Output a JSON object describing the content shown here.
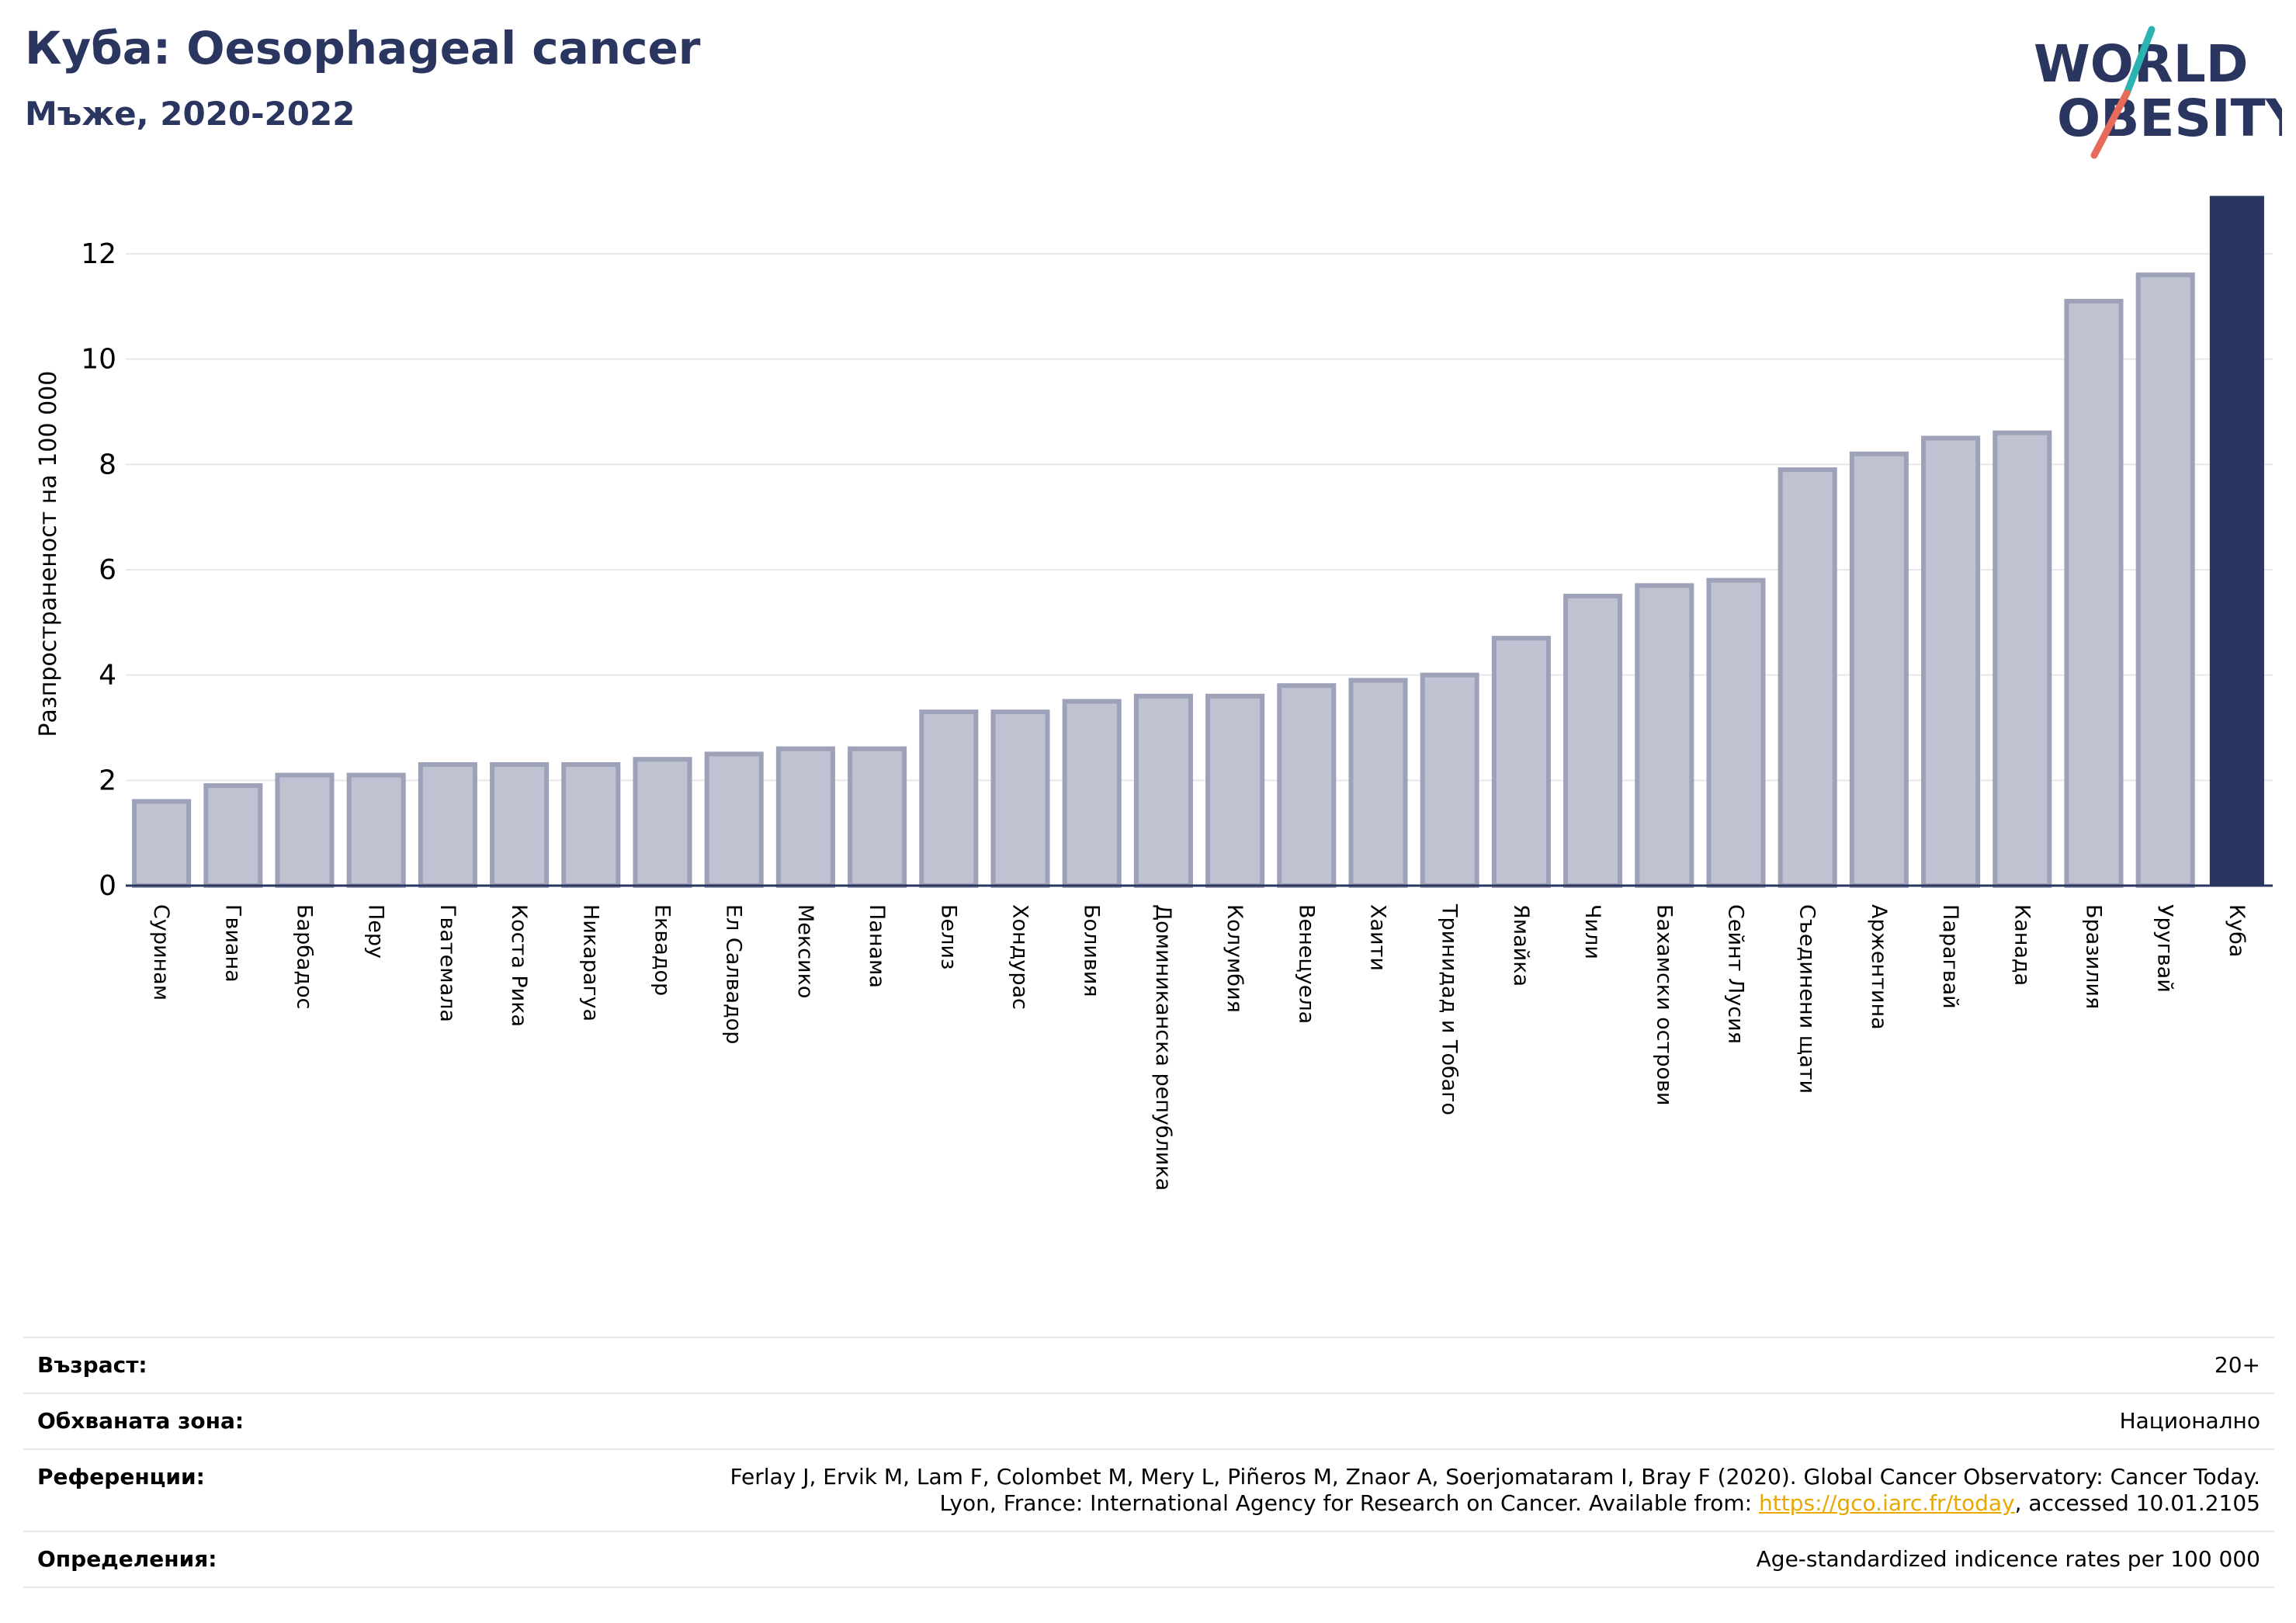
{
  "header": {
    "title": "Куба: Oesophageal cancer",
    "subtitle": "Мъже, 2020-2022",
    "logo_line1": "WORLD",
    "logo_line2": "OBESITY"
  },
  "chart_data": {
    "type": "bar",
    "title": "Куба: Oesophageal cancer",
    "subtitle": "Мъже, 2020-2022",
    "ylabel": "Разпространеност  на 100 000",
    "xlabel": "",
    "ylim": [
      0,
      13
    ],
    "yticks": [
      0,
      2,
      4,
      6,
      8,
      10,
      12
    ],
    "grid": true,
    "highlight": "Куба",
    "categories": [
      "Суринам",
      "Гвиана",
      "Барбадос",
      "Перу",
      "Гватемала",
      "Коста Рика",
      "Никарагуа",
      "Еквадор",
      "Ел Салвадор",
      "Мексико",
      "Панама",
      "Белиз",
      "Хондурас",
      "Боливия",
      "Доминиканска република",
      "Колумбия",
      "Венецуела",
      "Хаити",
      "Тринидад и Тобаго",
      "Ямайка",
      "Чили",
      "Бахамски острови",
      "Сейнт Лусия",
      "Съединени щати",
      "Аржентина",
      "Парагвай",
      "Канада",
      "Бразилия",
      "Уругвай",
      "Куба"
    ],
    "values": [
      1.6,
      1.9,
      2.1,
      2.1,
      2.3,
      2.3,
      2.3,
      2.4,
      2.5,
      2.6,
      2.6,
      3.3,
      3.3,
      3.5,
      3.6,
      3.6,
      3.8,
      3.9,
      4.0,
      4.7,
      5.5,
      5.7,
      5.8,
      7.9,
      8.2,
      8.5,
      8.6,
      11.1,
      11.6,
      13.1
    ],
    "colors": {
      "bar": "#bfc2d0",
      "bar_edge": "#9ea2b8",
      "highlight": "#2b3660"
    }
  },
  "footer": {
    "age_label": "Възраст:",
    "age_value": "20+",
    "coverage_label": "Обхваната зона:",
    "coverage_value": "Национално",
    "references_label": "Референции:",
    "references_line1": "Ferlay J, Ervik M, Lam F, Colombet M, Mery L, Piñeros M, Znaor A, Soerjomataram I, Bray F (2020). Global Cancer Observatory: Cancer Today.",
    "references_line2_pre": "Lyon, France: International Agency for Research on Cancer. Available from: ",
    "references_link": "https://gco.iarc.fr/today",
    "references_line2_post": ", accessed 10.01.2105",
    "definitions_label": "Определения:",
    "definitions_value": "Age-standardized indicence rates per 100 000"
  }
}
